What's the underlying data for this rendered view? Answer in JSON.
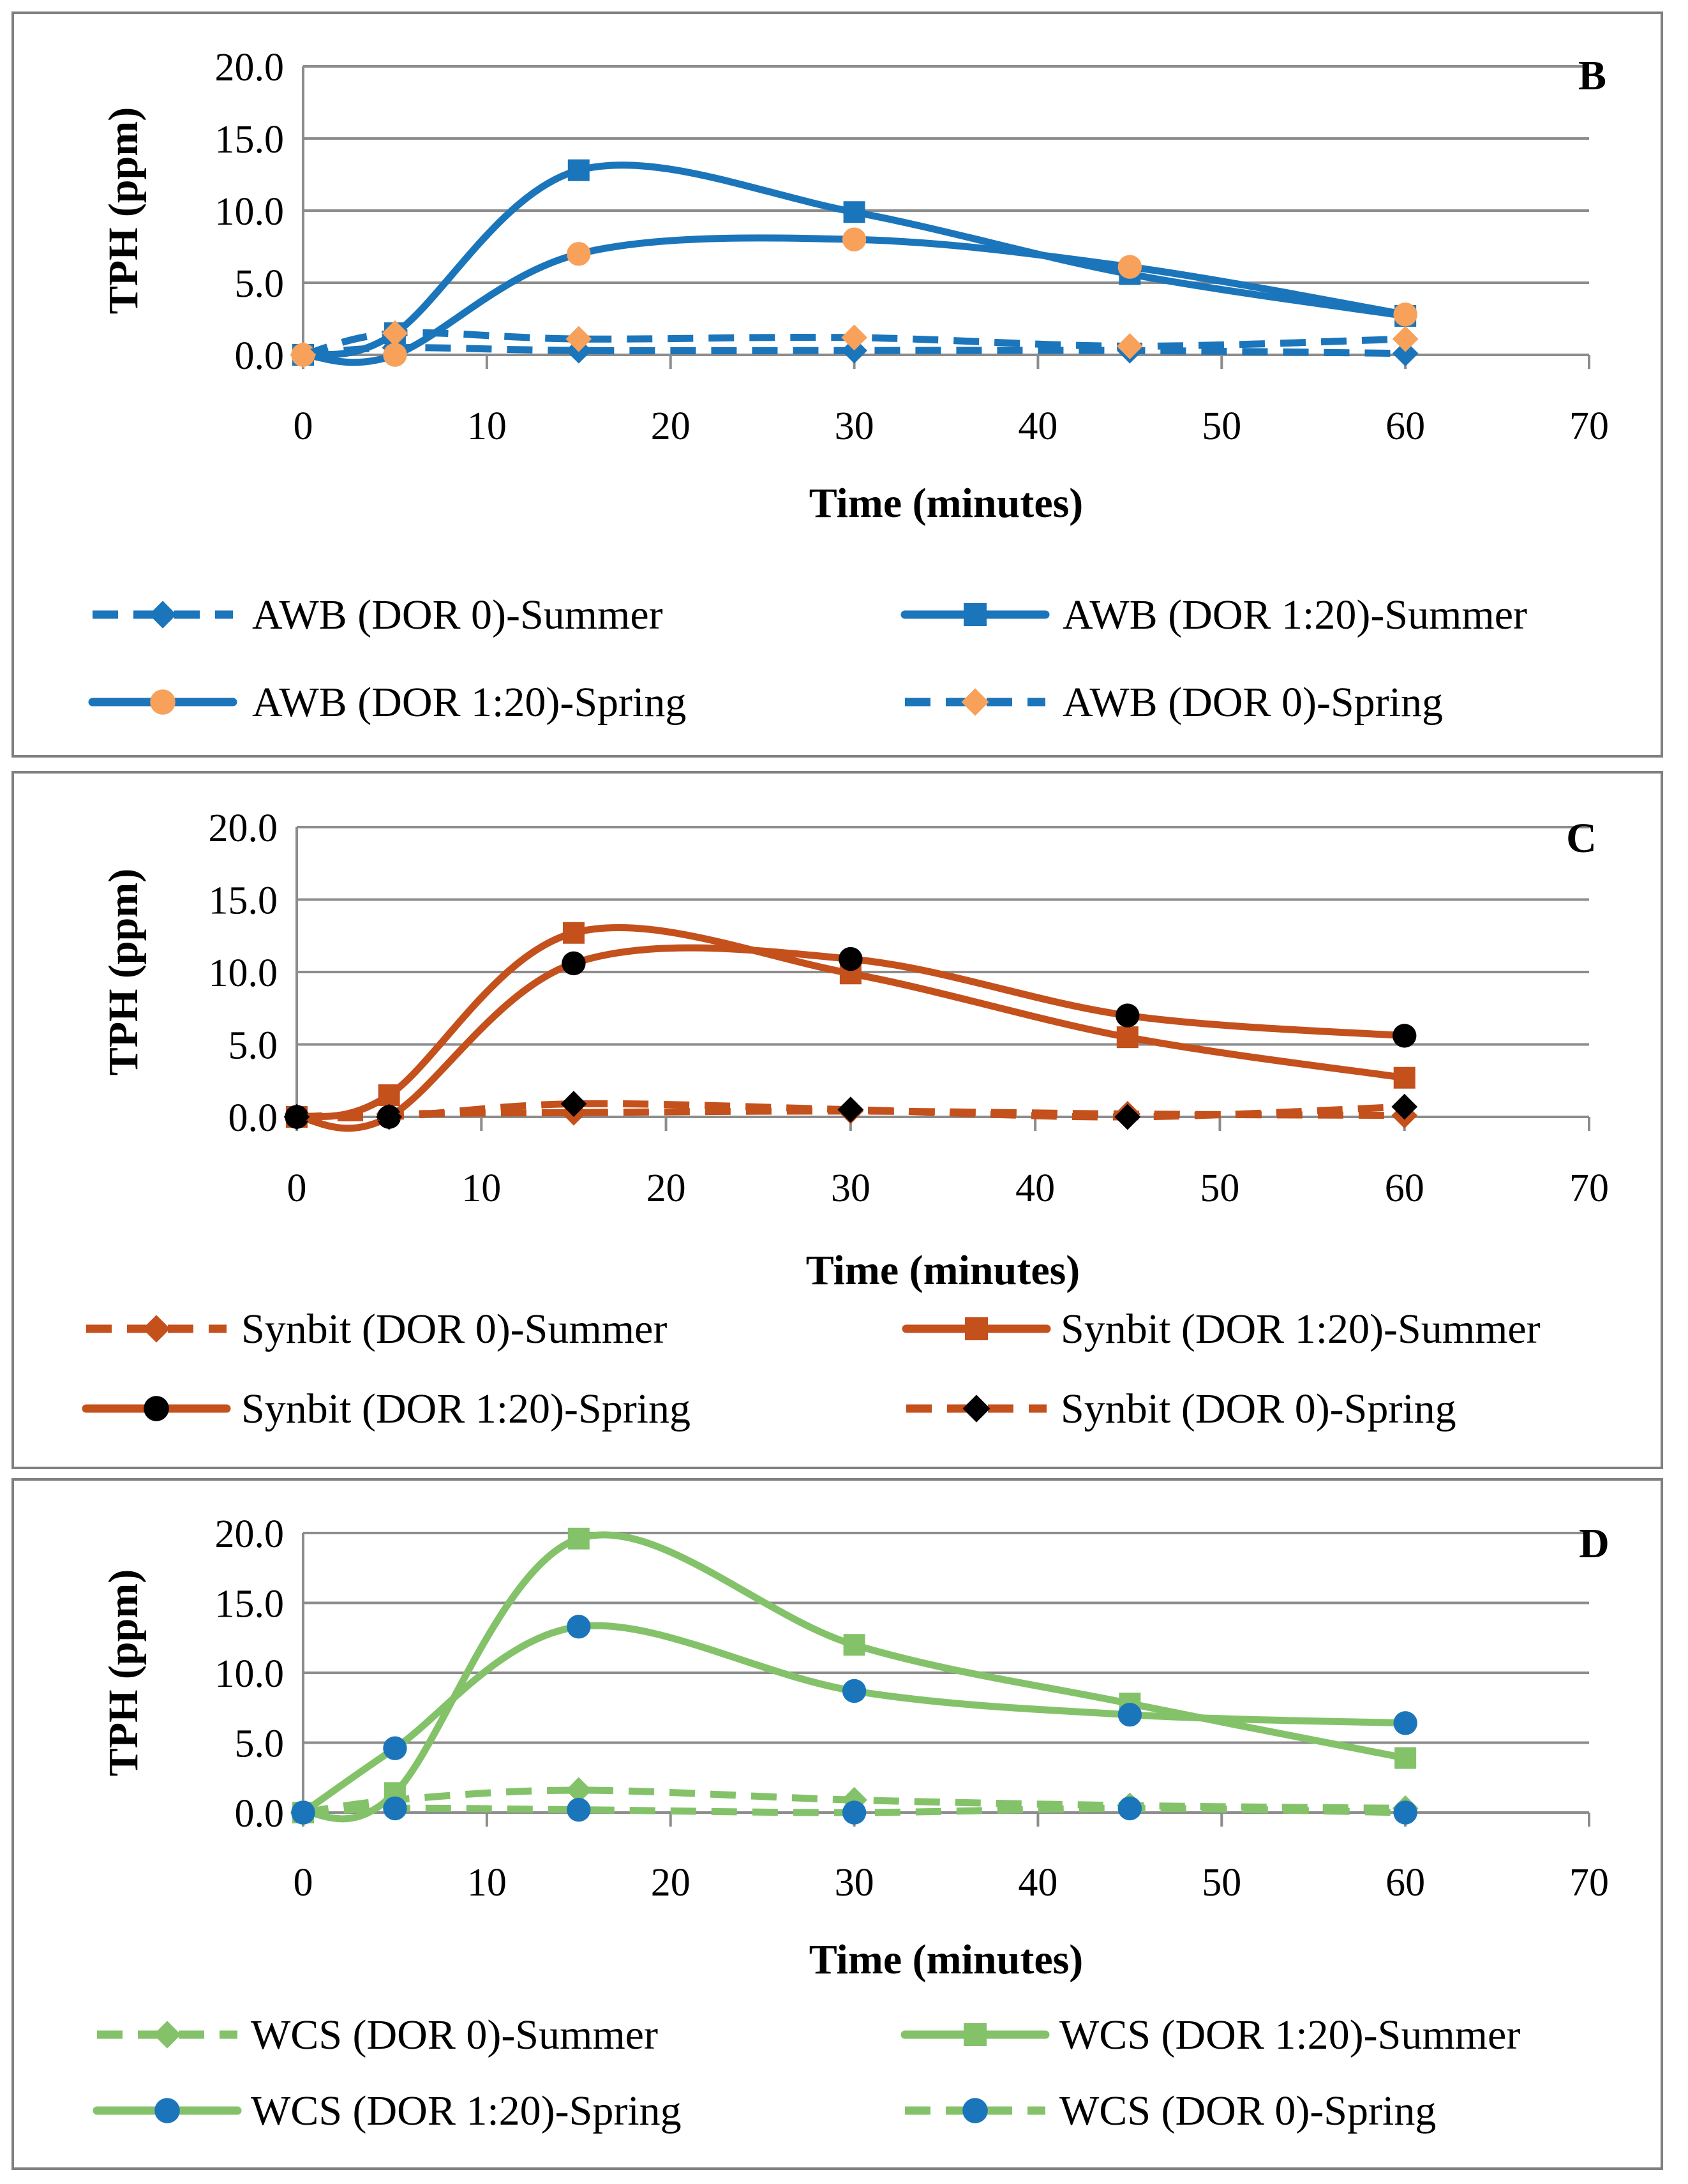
{
  "chart_data": [
    {
      "type": "line",
      "panel_label": "B",
      "xlabel": "Time (minutes)",
      "ylabel": "TPH (ppm)",
      "xlim": [
        0,
        70
      ],
      "ylim": [
        0,
        20
      ],
      "x_ticks": [
        "0",
        "10",
        "20",
        "30",
        "40",
        "50",
        "60",
        "70"
      ],
      "y_ticks": [
        "0.0",
        "5.0",
        "10.0",
        "15.0",
        "20.0"
      ],
      "x": [
        0,
        5,
        15,
        30,
        45,
        60
      ],
      "series": [
        {
          "name": "AWB (DOR 0)-Summer",
          "values": [
            0.0,
            0.5,
            0.3,
            0.3,
            0.3,
            0.1
          ],
          "color": "#1b75bb",
          "dash": true,
          "marker": "diamond",
          "marker_color": "#1b75bb"
        },
        {
          "name": "AWB (DOR 1:20)-Summer",
          "values": [
            0.0,
            1.5,
            12.8,
            9.9,
            5.6,
            2.7
          ],
          "color": "#1b75bb",
          "dash": false,
          "marker": "square",
          "marker_color": "#1b75bb"
        },
        {
          "name": "AWB (DOR 1:20)-Spring",
          "values": [
            0.0,
            0.0,
            7.0,
            8.0,
            6.1,
            2.8
          ],
          "color": "#1b75bb",
          "dash": false,
          "marker": "circle",
          "marker_color": "#f7a15a"
        },
        {
          "name": "AWB (DOR 0)-Spring",
          "values": [
            0.0,
            1.5,
            1.1,
            1.2,
            0.6,
            1.1
          ],
          "color": "#1b75bb",
          "dash": true,
          "marker": "diamond",
          "marker_color": "#f7a15a"
        }
      ]
    },
    {
      "type": "line",
      "panel_label": "C",
      "xlabel": "Time (minutes)",
      "ylabel": "TPH (ppm)",
      "xlim": [
        0,
        70
      ],
      "ylim": [
        0,
        20
      ],
      "x_ticks": [
        "0",
        "10",
        "20",
        "30",
        "40",
        "50",
        "60",
        "70"
      ],
      "y_ticks": [
        "0.0",
        "5.0",
        "10.0",
        "15.0",
        "20.0"
      ],
      "x": [
        0,
        5,
        15,
        30,
        45,
        60
      ],
      "series": [
        {
          "name": "Synbit (DOR 0)-Summer",
          "values": [
            0.0,
            0.2,
            0.3,
            0.4,
            0.2,
            0.1
          ],
          "color": "#c4501c",
          "dash": true,
          "marker": "diamond",
          "marker_color": "#c4501c"
        },
        {
          "name": "Synbit (DOR 1:20)-Summer",
          "values": [
            0.0,
            1.5,
            12.7,
            9.9,
            5.5,
            2.7
          ],
          "color": "#c4501c",
          "dash": false,
          "marker": "square",
          "marker_color": "#c4501c"
        },
        {
          "name": "Synbit (DOR 1:20)-Spring",
          "values": [
            0.0,
            0.0,
            10.6,
            10.9,
            7.0,
            5.6
          ],
          "color": "#c4501c",
          "dash": false,
          "marker": "circle",
          "marker_color": "#000000"
        },
        {
          "name": "Synbit (DOR 0)-Spring",
          "values": [
            0.0,
            0.0,
            0.9,
            0.5,
            0.0,
            0.7
          ],
          "color": "#c4501c",
          "dash": true,
          "marker": "diamond",
          "marker_color": "#000000"
        }
      ]
    },
    {
      "type": "line",
      "panel_label": "D",
      "xlabel": "Time (minutes)",
      "ylabel": "TPH (ppm)",
      "xlim": [
        0,
        70
      ],
      "ylim": [
        0,
        20
      ],
      "x_ticks": [
        "0",
        "10",
        "20",
        "30",
        "40",
        "50",
        "60",
        "70"
      ],
      "y_ticks": [
        "0.0",
        "5.0",
        "10.0",
        "15.0",
        "20.0"
      ],
      "x": [
        0,
        5,
        15,
        30,
        45,
        60
      ],
      "series": [
        {
          "name": "WCS (DOR 0)-Summer",
          "values": [
            0.0,
            0.9,
            1.6,
            0.9,
            0.5,
            0.3
          ],
          "color": "#84c26a",
          "dash": true,
          "marker": "diamond",
          "marker_color": "#84c26a"
        },
        {
          "name": "WCS (DOR 1:20)-Summer",
          "values": [
            0.0,
            1.4,
            19.6,
            12.0,
            7.8,
            3.9
          ],
          "color": "#84c26a",
          "dash": false,
          "marker": "square",
          "marker_color": "#84c26a"
        },
        {
          "name": "WCS (DOR 1:20)-Spring",
          "values": [
            0.0,
            4.6,
            13.3,
            8.7,
            7.0,
            6.4
          ],
          "color": "#84c26a",
          "dash": false,
          "marker": "circle",
          "marker_color": "#1b75bb"
        },
        {
          "name": "WCS (DOR 0)-Spring",
          "values": [
            0.0,
            0.3,
            0.2,
            0.0,
            0.3,
            0.0
          ],
          "color": "#84c26a",
          "dash": true,
          "marker": "circle",
          "marker_color": "#1b75bb"
        }
      ]
    }
  ]
}
